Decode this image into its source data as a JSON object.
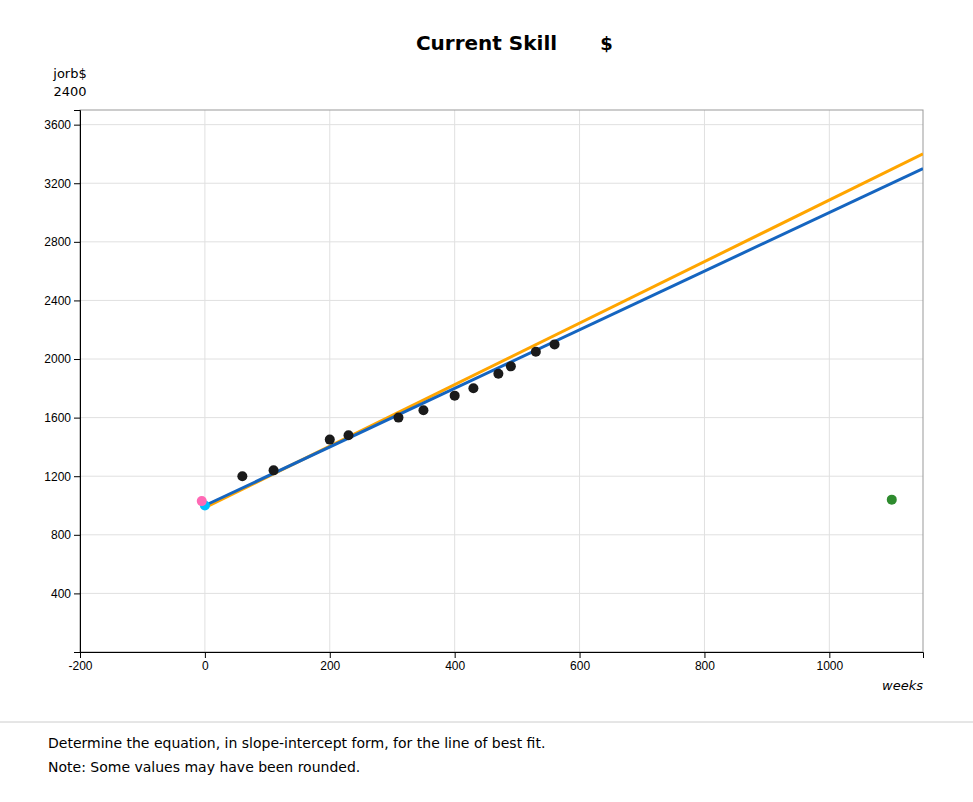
{
  "chart_data": {
    "type": "scatter",
    "title": "Current Skill",
    "xlabel": "weeks",
    "ylabel": "jorb$",
    "annotations": [
      "2400",
      "$",
      "Determine the equation, in slope-intercept form, for the line of best fit.",
      "Note: Some values may have been rounded."
    ],
    "xlim": [
      -200,
      1150
    ],
    "ylim": [
      0,
      3700
    ],
    "xticks": [
      -200,
      0,
      200,
      400,
      600,
      800,
      1000
    ],
    "yticks": [
      400,
      800,
      1200,
      1600,
      2000,
      2400,
      2800,
      3200,
      3600
    ],
    "grid": true,
    "series": [
      {
        "type": "line",
        "color": "#FFA500",
        "x": [
          0,
          1150
        ],
        "values": [
          985,
          3400
        ]
      },
      {
        "type": "line",
        "color": "#1565C0",
        "x": [
          0,
          1150
        ],
        "values": [
          1000,
          3300
        ]
      },
      {
        "type": "scatter",
        "x": [
          60,
          110,
          200,
          230,
          310,
          350,
          400,
          430,
          470,
          490,
          530,
          560,
          1100
        ],
        "values": [
          1200,
          1240,
          1450,
          1480,
          1600,
          1650,
          1750,
          1800,
          1900,
          1950,
          2050,
          2100,
          1040
        ],
        "colors": [
          "#1a1a1a",
          "#1a1a1a",
          "#1a1a1a",
          "#1a1a1a",
          "#1a1a1a",
          "#1a1a1a",
          "#1a1a1a",
          "#1a1a1a",
          "#1a1a1a",
          "#1a1a1a",
          "#1a1a1a",
          "#1a1a1a",
          "#2e8b2e"
        ]
      },
      {
        "type": "scatter",
        "color": "#00BFFF",
        "x": [
          0
        ],
        "values": [
          1000
        ]
      },
      {
        "type": "scatter",
        "color": "#FF69B4",
        "x": [
          -5
        ],
        "values": [
          1030
        ]
      }
    ]
  }
}
